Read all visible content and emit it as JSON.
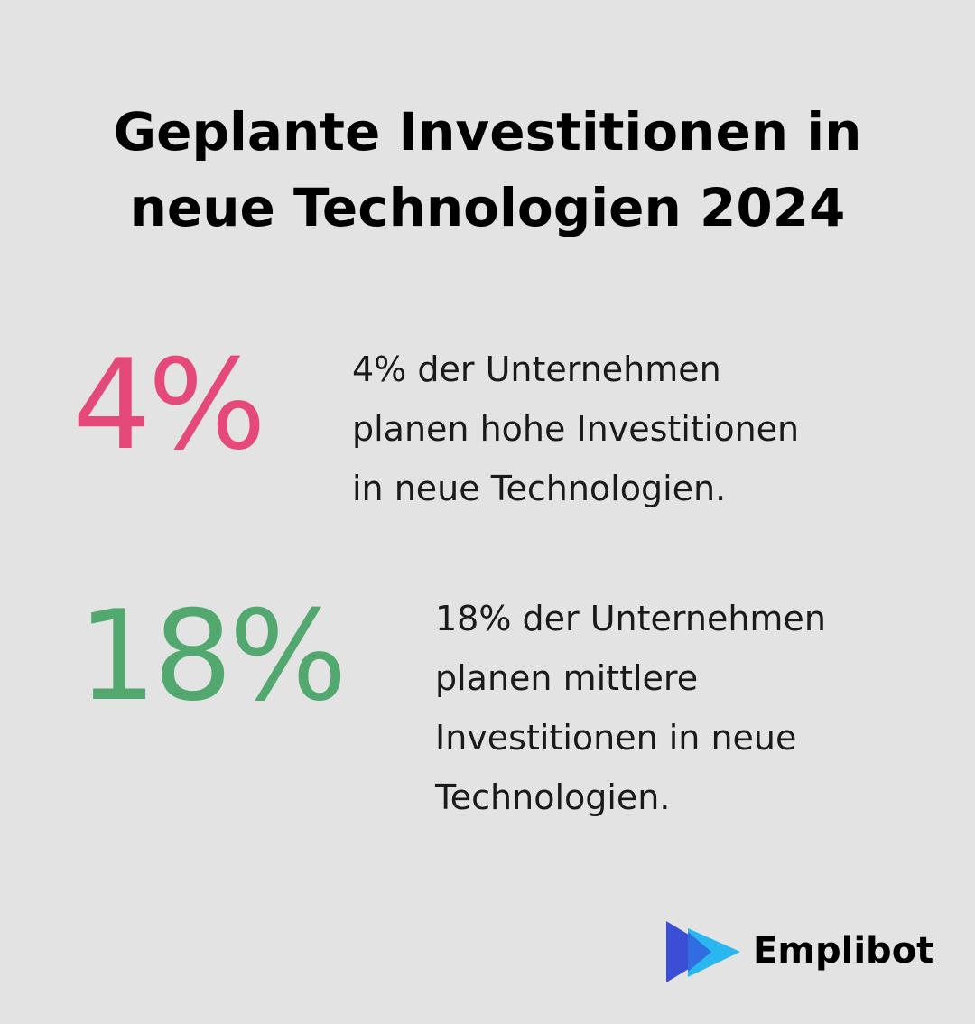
{
  "title": {
    "line1": "Geplante Investitionen in",
    "line2": "neue Technologien 2024"
  },
  "stats": [
    {
      "value": "4%",
      "color": "#e4497a",
      "lines": [
        "4% der Unternehmen",
        "planen hohe Investitionen",
        "in neue Technologien."
      ]
    },
    {
      "value": "18%",
      "color": "#52a86f",
      "lines": [
        "18% der Unternehmen",
        "planen mittlere",
        "Investitionen in neue",
        "Technologien."
      ]
    }
  ],
  "brand": {
    "name": "Emplibot",
    "icon": "play-arrows-logo-icon",
    "colors": {
      "dark": "#3a4fd6",
      "light": "#2ab7f0"
    }
  }
}
